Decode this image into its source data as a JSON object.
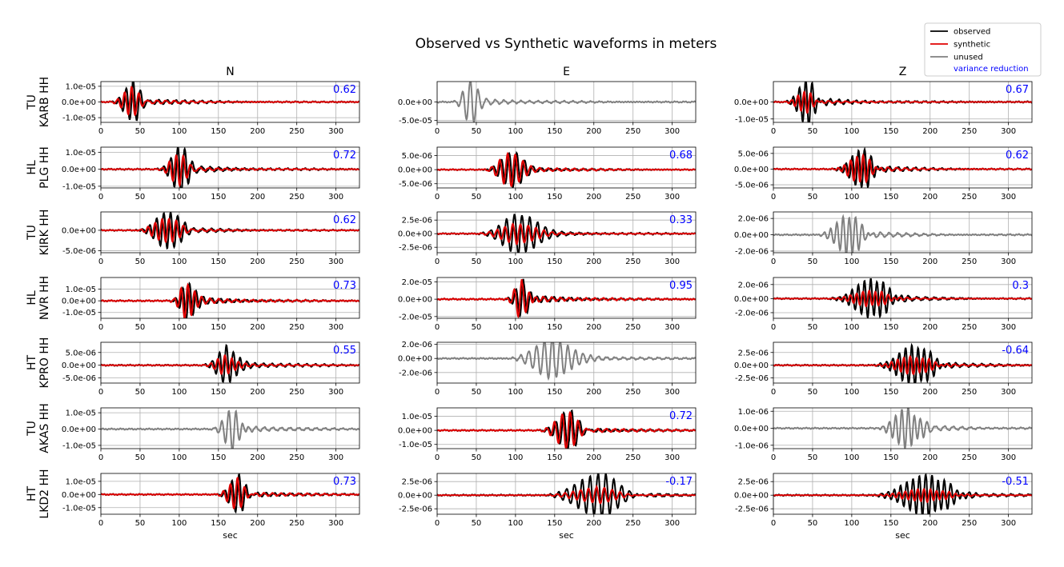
{
  "title": "Observed vs Synthetic waveforms in meters",
  "columns": [
    "N",
    "E",
    "Z"
  ],
  "xlabel": "sec",
  "xticks": [
    0,
    50,
    100,
    150,
    200,
    250,
    300
  ],
  "xlim": [
    0,
    330
  ],
  "legend": {
    "placement": "top-right",
    "entries": [
      {
        "label": "observed",
        "color": "#000000"
      },
      {
        "label": "synthetic",
        "color": "#e00000"
      },
      {
        "label": "unused",
        "color": "#808080"
      },
      {
        "label": "variance reduction",
        "color": "#0000ff"
      }
    ]
  },
  "colors": {
    "observed": "#000000",
    "synthetic": "#e00000",
    "unused": "#808080",
    "vr": "#0000ff"
  },
  "chart_data": {
    "type": "line",
    "rows": [
      {
        "network": "TU",
        "station": "KARB HH",
        "panels": [
          {
            "component": "N",
            "used": true,
            "vr": "0.62",
            "ylim": [
              -1.3e-05,
              1.3e-05
            ],
            "yticks": [
              "1.0e-05",
              "0.0e+00",
              "-1.0e-05"
            ],
            "ytick_values": [
              1e-05,
              0,
              -1e-05
            ],
            "arrival": 40,
            "amp": 1.2e-05,
            "dur": 30,
            "syn_factor": 0.7
          },
          {
            "component": "E",
            "used": false,
            "ylim": [
              -5.5e-05,
              5.5e-05
            ],
            "yticks": [
              "0.0e+00",
              "-5.0e-05"
            ],
            "ytick_values": [
              0,
              -5e-05
            ],
            "arrival": 42,
            "amp": 5.5e-05,
            "dur": 25
          },
          {
            "component": "Z",
            "used": true,
            "vr": "0.67",
            "ylim": [
              -1.2e-05,
              1.2e-05
            ],
            "yticks": [
              "0.0e+00",
              "-1.0e-05"
            ],
            "ytick_values": [
              0,
              -1e-05
            ],
            "arrival": 42,
            "amp": 1.3e-05,
            "dur": 30,
            "syn_factor": 0.45
          }
        ]
      },
      {
        "network": "HL",
        "station": "PLG HH",
        "panels": [
          {
            "component": "N",
            "used": true,
            "vr": "0.72",
            "ylim": [
              -1.1e-05,
              1.3e-05
            ],
            "yticks": [
              "1.0e-05",
              "0.0e+00",
              "-1.0e-05"
            ],
            "ytick_values": [
              1e-05,
              0,
              -1e-05
            ],
            "arrival": 100,
            "amp": 1.3e-05,
            "dur": 30,
            "syn_factor": 0.65
          },
          {
            "component": "E",
            "used": true,
            "vr": "0.68",
            "ylim": [
              -6.5e-06,
              8e-06
            ],
            "yticks": [
              "5.0e-06",
              "0.0e+00",
              "-5.0e-06"
            ],
            "ytick_values": [
              5e-06,
              0,
              -5e-06
            ],
            "arrival": 95,
            "amp": 6e-06,
            "dur": 40,
            "syn_factor": 0.95
          },
          {
            "component": "Z",
            "used": true,
            "vr": "0.62",
            "ylim": [
              -6e-06,
              7e-06
            ],
            "yticks": [
              "5.0e-06",
              "0.0e+00",
              "-5.0e-06"
            ],
            "ytick_values": [
              5e-06,
              0,
              -5e-06
            ],
            "arrival": 112,
            "amp": 6e-06,
            "dur": 40,
            "syn_factor": 0.7
          }
        ]
      },
      {
        "network": "TU",
        "station": "KIRK HH",
        "panels": [
          {
            "component": "N",
            "used": true,
            "vr": "0.62",
            "ylim": [
              -5.5e-06,
              4.5e-06
            ],
            "yticks": [
              "0.0e+00",
              "-5.0e-06"
            ],
            "ytick_values": [
              0,
              -5e-06
            ],
            "arrival": 85,
            "amp": 4.5e-06,
            "dur": 45,
            "syn_factor": 0.65
          },
          {
            "component": "E",
            "used": true,
            "vr": "0.33",
            "ylim": [
              -3.5e-06,
              4e-06
            ],
            "yticks": [
              "2.5e-06",
              "0.0e+00",
              "-2.5e-06"
            ],
            "ytick_values": [
              2.5e-06,
              0,
              -2.5e-06
            ],
            "arrival": 105,
            "amp": 3.8e-06,
            "dur": 60,
            "syn_factor": 0.5
          },
          {
            "component": "Z",
            "used": false,
            "ylim": [
              -2.2e-06,
              2.8e-06
            ],
            "yticks": [
              "2.0e-06",
              "0.0e+00",
              "-2.0e-06"
            ],
            "ytick_values": [
              2e-06,
              0,
              -2e-06
            ],
            "arrival": 95,
            "amp": 2.4e-06,
            "dur": 45
          }
        ]
      },
      {
        "network": "HL",
        "station": "NVR HH",
        "panels": [
          {
            "component": "N",
            "used": true,
            "vr": "0.73",
            "ylim": [
              -1.5e-05,
              2e-05
            ],
            "yticks": [
              "1.0e-05",
              "0.0e+00",
              "-1.0e-05"
            ],
            "ytick_values": [
              1e-05,
              0,
              -1e-05
            ],
            "arrival": 112,
            "amp": 1.8e-05,
            "dur": 25,
            "syn_factor": 0.95
          },
          {
            "component": "E",
            "used": true,
            "vr": "0.95",
            "ylim": [
              -2.2e-05,
              2.5e-05
            ],
            "yticks": [
              "2.0e-05",
              "0.0e+00",
              "-2.0e-05"
            ],
            "ytick_values": [
              2e-05,
              0,
              -2e-05
            ],
            "arrival": 110,
            "amp": 2.4e-05,
            "dur": 25,
            "syn_factor": 0.98
          },
          {
            "component": "Z",
            "used": true,
            "vr": "0.3",
            "ylim": [
              -2.8e-06,
              3e-06
            ],
            "yticks": [
              "2.0e-06",
              "0.0e+00",
              "-2.0e-06"
            ],
            "ytick_values": [
              2e-06,
              0,
              -2e-06
            ],
            "arrival": 125,
            "amp": 2.8e-06,
            "dur": 60,
            "syn_factor": 0.4
          }
        ]
      },
      {
        "network": "HT",
        "station": "KPRO HH",
        "panels": [
          {
            "component": "N",
            "used": true,
            "vr": "0.55",
            "ylim": [
              -7e-06,
              9e-06
            ],
            "yticks": [
              "5.0e-06",
              "0.0e+00",
              "-5.0e-06"
            ],
            "ytick_values": [
              5e-06,
              0,
              -5e-06
            ],
            "arrival": 162,
            "amp": 8e-06,
            "dur": 35,
            "syn_factor": 0.5
          },
          {
            "component": "E",
            "used": false,
            "ylim": [
              -3.5e-06,
              2.3e-06
            ],
            "yticks": [
              "2.0e-06",
              "0.0e+00",
              "-2.0e-06"
            ],
            "ytick_values": [
              2e-06,
              0,
              -2e-06
            ],
            "arrival": 150,
            "amp": 3e-06,
            "dur": 70
          },
          {
            "component": "Z",
            "used": true,
            "vr": "-0.64",
            "ylim": [
              -3.5e-06,
              4.5e-06
            ],
            "yticks": [
              "2.5e-06",
              "0.0e+00",
              "-2.5e-06"
            ],
            "ytick_values": [
              2.5e-06,
              0,
              -2.5e-06
            ],
            "arrival": 180,
            "amp": 4e-06,
            "dur": 60,
            "syn_factor": 0.45
          }
        ]
      },
      {
        "network": "TU",
        "station": "AKAS HH",
        "panels": [
          {
            "component": "N",
            "used": false,
            "ylim": [
              -1.2e-05,
              1.3e-05
            ],
            "yticks": [
              "1.0e-05",
              "0.0e+00",
              "-1.0e-05"
            ],
            "ytick_values": [
              1e-05,
              0,
              -1e-05
            ],
            "arrival": 168,
            "amp": 1.3e-05,
            "dur": 30
          },
          {
            "component": "E",
            "used": true,
            "vr": "0.72",
            "ylim": [
              -1.3e-05,
              1.6e-05
            ],
            "yticks": [
              "1.0e-05",
              "0.0e+00",
              "-1.0e-05"
            ],
            "ytick_values": [
              1e-05,
              0,
              -1e-05
            ],
            "arrival": 168,
            "amp": 1.4e-05,
            "dur": 40,
            "syn_factor": 0.95
          },
          {
            "component": "Z",
            "used": false,
            "ylim": [
              -1.2e-06,
              1.2e-06
            ],
            "yticks": [
              "1.0e-06",
              "0.0e+00",
              "-1.0e-06"
            ],
            "ytick_values": [
              1e-06,
              0,
              -1e-06
            ],
            "arrival": 170,
            "amp": 1.2e-06,
            "dur": 45
          }
        ]
      },
      {
        "network": "HT",
        "station": "LKD2 HH",
        "panels": [
          {
            "component": "N",
            "used": true,
            "vr": "0.73",
            "ylim": [
              -1.5e-05,
              1.6e-05
            ],
            "yticks": [
              "1.0e-05",
              "0.0e+00",
              "-1.0e-05"
            ],
            "ytick_values": [
              1e-05,
              0,
              -1e-05
            ],
            "arrival": 175,
            "amp": 1.4e-05,
            "dur": 30,
            "syn_factor": 0.8
          },
          {
            "component": "E",
            "used": true,
            "vr": "-0.17",
            "ylim": [
              -3.5e-06,
              4e-06
            ],
            "yticks": [
              "2.5e-06",
              "0.0e+00",
              "-2.5e-06"
            ],
            "ytick_values": [
              2.5e-06,
              0,
              -2.5e-06
            ],
            "arrival": 205,
            "amp": 3.8e-06,
            "dur": 80,
            "syn_factor": 0.35
          },
          {
            "component": "Z",
            "used": true,
            "vr": "-0.51",
            "ylim": [
              -3.5e-06,
              4e-06
            ],
            "yticks": [
              "2.5e-06",
              "0.0e+00",
              "-2.5e-06"
            ],
            "ytick_values": [
              2.5e-06,
              0,
              -2.5e-06
            ],
            "arrival": 195,
            "amp": 3.8e-06,
            "dur": 80,
            "syn_factor": 0.3
          }
        ]
      }
    ]
  }
}
